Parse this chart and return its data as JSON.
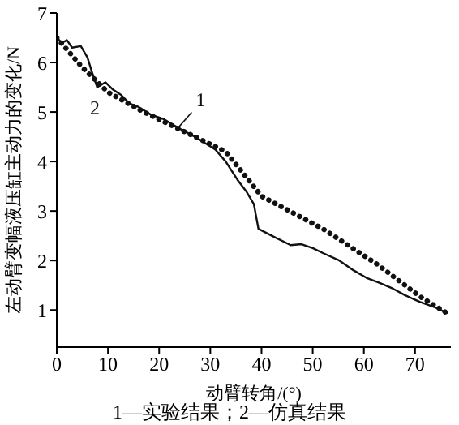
{
  "chart_data": {
    "type": "line",
    "xlabel": "动臂转角/(°)",
    "ylabel": "左动臂变幅液压缸主动力的变化/N",
    "xlim": [
      0,
      77
    ],
    "ylim": [
      0.25,
      7
    ],
    "xticks": [
      0,
      10,
      20,
      30,
      40,
      50,
      60,
      70
    ],
    "yticks": [
      1,
      2,
      3,
      4,
      5,
      6,
      7
    ],
    "grid": false,
    "legend": false,
    "marker": "none",
    "series": [
      {
        "name": "1",
        "color": "#111111",
        "line_style": "solid",
        "x": [
          0,
          1,
          2,
          3,
          4.7,
          6,
          6.8,
          7.9,
          9.5,
          11,
          12.5,
          14.2,
          16,
          18.3,
          21,
          23.7,
          27,
          31,
          33,
          35.3,
          37,
          38.5,
          39.4,
          42,
          45.7,
          47.8,
          50,
          52,
          55.2,
          58,
          60.5,
          63,
          65.7,
          68,
          71,
          74,
          76.2
        ],
        "values": [
          6.5,
          6.4,
          6.45,
          6.3,
          6.33,
          6.1,
          5.83,
          5.5,
          5.6,
          5.45,
          5.35,
          5.17,
          5.1,
          4.95,
          4.85,
          4.68,
          4.5,
          4.24,
          4.0,
          3.63,
          3.4,
          3.14,
          2.64,
          2.5,
          2.31,
          2.33,
          2.25,
          2.15,
          2.0,
          1.8,
          1.65,
          1.55,
          1.43,
          1.3,
          1.16,
          1.05,
          0.94
        ]
      },
      {
        "name": "2",
        "color": "#111111",
        "line_style": "dotted",
        "x": [
          0,
          5,
          10,
          17,
          25,
          33,
          40,
          52,
          62.5,
          71,
          76.2
        ],
        "values": [
          6.5,
          5.9,
          5.4,
          5.0,
          4.6,
          4.2,
          3.3,
          2.64,
          1.93,
          1.27,
          0.94
        ]
      }
    ],
    "annotations": [
      "1—实验结果；2—仿真结果"
    ]
  }
}
